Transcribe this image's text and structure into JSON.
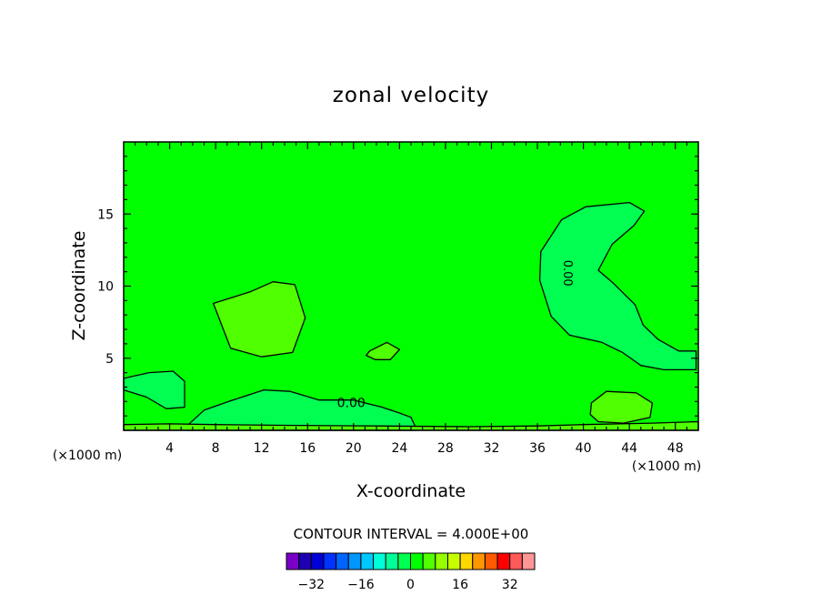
{
  "chart_data": {
    "type": "heatmap",
    "title": "zonal velocity",
    "xlabel": "X-coordinate",
    "ylabel": "Z-coordinate",
    "x_unit_label": "(×1000 m)",
    "xlim": [
      0,
      50
    ],
    "ylim": [
      0,
      20
    ],
    "x_ticks": [
      4,
      8,
      12,
      16,
      20,
      24,
      28,
      32,
      36,
      40,
      44,
      48
    ],
    "y_ticks": [
      5,
      10,
      15
    ],
    "contour_interval_label": "CONTOUR INTERVAL = 4.000E+00",
    "contour_interval": 4.0,
    "contour_labels": [
      "0.00",
      "0.00"
    ],
    "colorbar": {
      "levels": [
        -36,
        -32,
        -28,
        -24,
        -20,
        -16,
        -12,
        -8,
        -4,
        0,
        4,
        8,
        12,
        16,
        20,
        24,
        28,
        32,
        36
      ],
      "tick_labels": [
        "-32",
        "-16",
        "0",
        "16",
        "32"
      ],
      "tick_values": [
        -32,
        -16,
        0,
        16,
        32
      ],
      "colors": [
        "#7a00c8",
        "#1e00b4",
        "#0000d8",
        "#0032ff",
        "#0064ff",
        "#0096ff",
        "#00c8ff",
        "#00ffd8",
        "#00ff96",
        "#00ff50",
        "#00ff00",
        "#50ff00",
        "#96ff00",
        "#c8ff00",
        "#ffd800",
        "#ff9600",
        "#ff5a00",
        "#ff0000",
        "#ff5a5a",
        "#ff9696"
      ]
    },
    "background_value_range": [
      0,
      4
    ],
    "features": [
      {
        "kind": "positive",
        "range": [
          4,
          8
        ],
        "x": [
          7.8,
          11,
          13,
          14.9,
          15.8,
          14.7,
          12,
          9.3
        ],
        "z": [
          8.8,
          9.6,
          10.3,
          10.1,
          7.8,
          5.4,
          5.1,
          5.7
        ]
      },
      {
        "kind": "positive",
        "range": [
          4,
          8
        ],
        "x": [
          21.4,
          22.9,
          24,
          23.2,
          21.9,
          21.1
        ],
        "z": [
          5.5,
          6.1,
          5.6,
          4.9,
          4.9,
          5.2
        ]
      },
      {
        "kind": "positive",
        "range": [
          4,
          8
        ],
        "x": [
          40.7,
          42,
          44.6,
          46,
          45.8,
          43.5,
          41.3,
          40.6
        ],
        "z": [
          1.9,
          2.7,
          2.6,
          1.9,
          0.9,
          0.5,
          0.6,
          1.1
        ]
      },
      {
        "kind": "negative",
        "range": [
          -4,
          0
        ],
        "x": [
          36.3,
          38.1,
          40.2,
          44,
          45.3,
          44.4,
          42.5,
          41.3,
          42.6,
          44.5,
          45.2,
          46.5,
          48.3,
          49.8,
          49.8,
          47,
          45,
          43.4,
          41.6,
          38.8,
          37.2,
          36.2
        ],
        "z": [
          12.4,
          14.6,
          15.5,
          15.8,
          15.2,
          14.2,
          12.9,
          11.1,
          10.2,
          8.7,
          7.3,
          6.3,
          5.5,
          5.5,
          4.2,
          4.2,
          4.5,
          5.4,
          6.1,
          6.6,
          7.9,
          10.4
        ]
      },
      {
        "kind": "negative",
        "range": [
          -4,
          0
        ],
        "x": [
          0,
          2.2,
          4.3,
          5.3,
          5.3,
          3.7,
          2,
          0
        ],
        "z": [
          3.6,
          4,
          4.1,
          3.4,
          1.6,
          1.5,
          2.3,
          2.8
        ]
      },
      {
        "kind": "negative",
        "range": [
          -4,
          0
        ],
        "x": [
          5.5,
          7,
          9.5,
          12.2,
          14.5,
          17,
          20,
          22.5,
          24,
          25,
          25.4,
          25.4,
          5.5
        ],
        "z": [
          0.3,
          1.4,
          2.1,
          2.8,
          2.7,
          2.1,
          2.1,
          1.6,
          1.2,
          0.9,
          0.2,
          0,
          0
        ]
      },
      {
        "kind": "positive",
        "range": [
          4,
          8
        ],
        "x": [
          0,
          4,
          8,
          14,
          22,
          30,
          36,
          40,
          46,
          50,
          50,
          0
        ],
        "z": [
          0.4,
          0.45,
          0.4,
          0.35,
          0.3,
          0.25,
          0.3,
          0.4,
          0.5,
          0.6,
          0,
          0
        ]
      }
    ]
  }
}
